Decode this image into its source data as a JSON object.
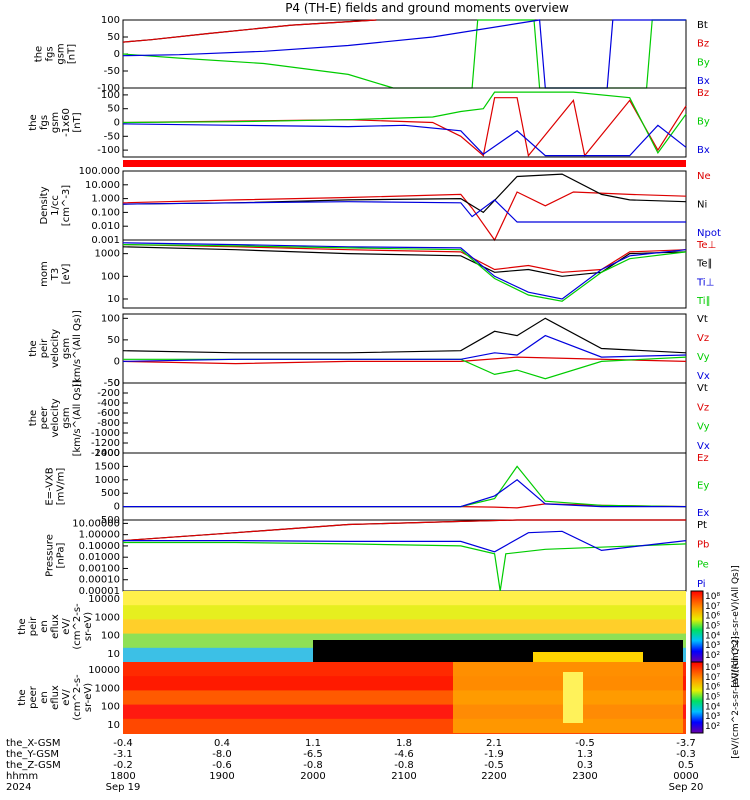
{
  "title": "P4 (TH-E) fields and ground moments overview",
  "chart_data": [
    {
      "panel": "fgs",
      "type": "line",
      "ylabel": [
        "the",
        "fgs",
        "gsm",
        "[nT]"
      ],
      "ylim": [
        -100,
        100
      ],
      "yticks": [
        100,
        50,
        0,
        -50,
        -100
      ],
      "ylog": false,
      "series": [
        {
          "name": "Bt",
          "color": "#000000",
          "x": [
            0,
            0.05,
            0.15,
            0.3,
            0.45
          ],
          "y": [
            35,
            42,
            60,
            85,
            110
          ]
        },
        {
          "name": "Bz",
          "color": "#dd0000",
          "x": [
            0,
            0.05,
            0.15,
            0.3,
            0.45
          ],
          "y": [
            35,
            42,
            60,
            85,
            110
          ]
        },
        {
          "name": "By",
          "color": "#00cc00",
          "x": [
            0,
            0.1,
            0.25,
            0.4,
            0.48,
            0.62,
            0.63,
            0.73,
            0.74,
            0.93,
            0.94,
            1.0
          ],
          "y": [
            0,
            -12,
            -28,
            -60,
            -110,
            -110,
            110,
            110,
            -110,
            -110,
            110,
            110
          ]
        },
        {
          "name": "Bx",
          "color": "#0000dd",
          "x": [
            0,
            0.1,
            0.25,
            0.4,
            0.55,
            0.74,
            0.75,
            0.86,
            0.87,
            1.0
          ],
          "y": [
            -5,
            -2,
            8,
            25,
            50,
            110,
            -110,
            -110,
            110,
            110
          ]
        }
      ]
    },
    {
      "panel": "fgs-dsl",
      "type": "line",
      "ylabel": [
        "the",
        "fgs",
        "gsm",
        "-1x60",
        "[nT]"
      ],
      "ylim": [
        -125,
        125
      ],
      "yticks": [
        100,
        50,
        0,
        -50,
        -100
      ],
      "ylog": false,
      "series": [
        {
          "name": "Bz",
          "color": "#dd0000",
          "x": [
            0,
            0.2,
            0.4,
            0.55,
            0.6,
            0.64,
            0.66,
            0.7,
            0.72,
            0.8,
            0.82,
            0.9,
            0.95,
            1.0
          ],
          "y": [
            0,
            5,
            10,
            0,
            -50,
            -120,
            90,
            90,
            -120,
            80,
            -120,
            80,
            -100,
            60
          ]
        },
        {
          "name": "By",
          "color": "#00cc00",
          "x": [
            0,
            0.2,
            0.4,
            0.55,
            0.6,
            0.64,
            0.66,
            0.8,
            0.9,
            0.95,
            1.0
          ],
          "y": [
            0,
            3,
            10,
            20,
            40,
            50,
            110,
            110,
            90,
            -110,
            30
          ]
        },
        {
          "name": "Bx",
          "color": "#0000dd",
          "x": [
            0,
            0.2,
            0.4,
            0.5,
            0.6,
            0.64,
            0.7,
            0.75,
            0.82,
            0.9,
            0.95,
            1.0
          ],
          "y": [
            -5,
            -10,
            -15,
            -10,
            -30,
            -115,
            -30,
            -120,
            -120,
            -120,
            -10,
            -90
          ]
        }
      ]
    },
    {
      "panel": "density",
      "type": "line",
      "ylabel": [
        "Density",
        "1/cc",
        "[cm^-3]"
      ],
      "ylim": [
        0.001,
        100
      ],
      "yticks": [
        "100.000",
        "10.000",
        "1.000",
        "0.100",
        "0.010",
        "0.001"
      ],
      "ylog": true,
      "series": [
        {
          "name": "Ne",
          "color": "#dd0000",
          "x": [
            0,
            0.2,
            0.4,
            0.6,
            0.62,
            0.66,
            0.7,
            0.75,
            0.8,
            0.9,
            1.0
          ],
          "y": [
            0.5,
            0.8,
            1.2,
            2,
            0.2,
            0.001,
            3,
            0.3,
            3,
            2,
            1.5
          ]
        },
        {
          "name": "Ni",
          "color": "#000000",
          "x": [
            0,
            0.2,
            0.4,
            0.6,
            0.64,
            0.7,
            0.78,
            0.85,
            0.9,
            1.0
          ],
          "y": [
            0.4,
            0.5,
            0.8,
            1,
            0.1,
            40,
            60,
            2,
            0.8,
            0.6
          ]
        },
        {
          "name": "Npot",
          "color": "#0000dd",
          "x": [
            0,
            0.2,
            0.4,
            0.6,
            0.62,
            0.66,
            0.7,
            1.0
          ],
          "y": [
            0.4,
            0.5,
            0.6,
            0.5,
            0.05,
            0.8,
            0.02,
            0.02
          ]
        }
      ]
    },
    {
      "panel": "temperature",
      "type": "line",
      "ylabel": [
        "mom",
        "T3",
        "[eV]"
      ],
      "ylim": [
        4,
        4000
      ],
      "yticks": [
        "1000",
        "100",
        "10"
      ],
      "ylog": true,
      "series": [
        {
          "name": "Te⊥",
          "color": "#dd0000",
          "x": [
            0,
            0.2,
            0.4,
            0.6,
            0.66,
            0.72,
            0.78,
            0.85,
            0.9,
            1.0
          ],
          "y": [
            2500,
            2000,
            1500,
            1200,
            200,
            300,
            150,
            200,
            1200,
            1500
          ]
        },
        {
          "name": "Te∥",
          "color": "#000000",
          "x": [
            0,
            0.2,
            0.4,
            0.6,
            0.66,
            0.72,
            0.78,
            0.85,
            0.9,
            1.0
          ],
          "y": [
            2000,
            1500,
            1000,
            800,
            150,
            200,
            100,
            150,
            1000,
            1200
          ]
        },
        {
          "name": "Ti⊥",
          "color": "#0000dd",
          "x": [
            0,
            0.2,
            0.4,
            0.6,
            0.66,
            0.72,
            0.78,
            0.85,
            0.9,
            1.0
          ],
          "y": [
            3000,
            2500,
            2000,
            1800,
            100,
            20,
            10,
            200,
            800,
            1500
          ]
        },
        {
          "name": "Ti∥",
          "color": "#00cc00",
          "x": [
            0,
            0.2,
            0.4,
            0.6,
            0.66,
            0.72,
            0.78,
            0.85,
            0.9,
            1.0
          ],
          "y": [
            2500,
            2200,
            1800,
            1500,
            80,
            15,
            8,
            150,
            600,
            1200
          ]
        }
      ]
    },
    {
      "panel": "peir-velocity",
      "type": "line",
      "ylabel": [
        "the",
        "peir",
        "velocity",
        "gsm",
        "[km/s^(All Qs)]"
      ],
      "ylim": [
        -50,
        110
      ],
      "yticks": [
        100,
        50,
        0,
        -50
      ],
      "ylog": false,
      "series": [
        {
          "name": "Vt",
          "color": "#000000",
          "x": [
            0,
            0.2,
            0.4,
            0.6,
            0.66,
            0.7,
            0.75,
            0.85,
            1.0
          ],
          "y": [
            25,
            20,
            20,
            25,
            70,
            60,
            100,
            30,
            20
          ]
        },
        {
          "name": "Vz",
          "color": "#dd0000",
          "x": [
            0,
            0.2,
            0.4,
            0.6,
            0.7,
            1.0
          ],
          "y": [
            0,
            -5,
            0,
            0,
            10,
            0
          ]
        },
        {
          "name": "Vy",
          "color": "#00cc00",
          "x": [
            0,
            0.2,
            0.4,
            0.6,
            0.66,
            0.7,
            0.75,
            0.85,
            1.0
          ],
          "y": [
            5,
            5,
            5,
            5,
            -30,
            -20,
            -40,
            0,
            10
          ]
        },
        {
          "name": "Vx",
          "color": "#0000dd",
          "x": [
            0,
            0.2,
            0.4,
            0.6,
            0.66,
            0.7,
            0.75,
            0.85,
            1.0
          ],
          "y": [
            0,
            5,
            5,
            5,
            20,
            15,
            60,
            10,
            15
          ]
        }
      ]
    },
    {
      "panel": "peer-velocity",
      "type": "line",
      "ylabel": [
        "the",
        "peer",
        "velocity",
        "gsm",
        "[km/s^(All Qs)]"
      ],
      "ylim": [
        -1400,
        0
      ],
      "yticks": [
        0,
        -200,
        -400,
        -600,
        -800,
        -1000,
        -1200,
        -1400
      ],
      "ylog": false,
      "series": [
        {
          "name": "Vt",
          "color": "#000000",
          "x": [],
          "y": []
        },
        {
          "name": "Vz",
          "color": "#dd0000",
          "x": [],
          "y": []
        },
        {
          "name": "Vy",
          "color": "#00cc00",
          "x": [],
          "y": []
        },
        {
          "name": "Vx",
          "color": "#0000dd",
          "x": [],
          "y": []
        }
      ]
    },
    {
      "panel": "efield",
      "type": "line",
      "ylabel": [
        "E=-VXB",
        "[mV/m]"
      ],
      "ylim": [
        -500,
        2000
      ],
      "yticks": [
        2000,
        1500,
        1000,
        500,
        0,
        -500
      ],
      "ylog": false,
      "series": [
        {
          "name": "Ez",
          "color": "#dd0000",
          "x": [
            0,
            0.2,
            0.4,
            0.6,
            0.66,
            0.7,
            0.75,
            0.85,
            1.0
          ],
          "y": [
            0,
            0,
            0,
            0,
            -20,
            -50,
            100,
            50,
            0
          ]
        },
        {
          "name": "Ey",
          "color": "#00cc00",
          "x": [
            0,
            0.2,
            0.4,
            0.6,
            0.66,
            0.7,
            0.75,
            0.85,
            1.0
          ],
          "y": [
            0,
            0,
            0,
            0,
            300,
            1500,
            200,
            50,
            0
          ]
        },
        {
          "name": "Ex",
          "color": "#0000dd",
          "x": [
            0,
            0.2,
            0.4,
            0.6,
            0.66,
            0.7,
            0.75,
            0.85,
            1.0
          ],
          "y": [
            0,
            0,
            0,
            0,
            400,
            1000,
            100,
            0,
            0
          ]
        }
      ]
    },
    {
      "panel": "pressure",
      "type": "line",
      "ylabel": [
        "Pressure",
        "[nPa]"
      ],
      "ylim": [
        1e-05,
        20
      ],
      "yticks": [
        "10.00000",
        "1.00000",
        "0.10000",
        "0.01000",
        "0.00100",
        "0.00010",
        "0.00001"
      ],
      "ylog": true,
      "series": [
        {
          "name": "Pt",
          "color": "#000000",
          "x": [
            0,
            0.2,
            0.4,
            0.6,
            0.7,
            1.0
          ],
          "y": [
            0.3,
            1.5,
            8,
            15,
            20,
            20
          ]
        },
        {
          "name": "Pb",
          "color": "#dd0000",
          "x": [
            0,
            0.2,
            0.4,
            0.6,
            0.7,
            1.0
          ],
          "y": [
            0.3,
            1.5,
            8,
            15,
            20,
            20
          ]
        },
        {
          "name": "Pe",
          "color": "#00cc00",
          "x": [
            0,
            0.2,
            0.4,
            0.6,
            0.66,
            0.67,
            0.68,
            0.75,
            1.0
          ],
          "y": [
            0.2,
            0.2,
            0.15,
            0.1,
            0.02,
            1e-05,
            0.02,
            0.05,
            0.15
          ]
        },
        {
          "name": "Pi",
          "color": "#0000dd",
          "x": [
            0,
            0.2,
            0.4,
            0.6,
            0.66,
            0.72,
            0.78,
            0.85,
            1.0
          ],
          "y": [
            0.3,
            0.3,
            0.25,
            0.25,
            0.03,
            1.5,
            2,
            0.04,
            0.3
          ]
        }
      ]
    },
    {
      "panel": "peir-spectrogram",
      "type": "heatmap",
      "ylabel": [
        "the",
        "peir",
        "en",
        "eflux",
        "eV/",
        "(cm^2-s-",
        "sr-eV)"
      ],
      "ylog": true,
      "yticks": [
        "10000",
        "1000",
        "100",
        "10"
      ],
      "colorbar_label": "[eV/(cm^2-s-sr-eV)(All Qs)]",
      "colorbar_ticks": [
        "10⁸",
        "10⁷",
        "10⁶",
        "10⁵",
        "10⁴",
        "10³",
        "10²"
      ]
    },
    {
      "panel": "peer-spectrogram",
      "type": "heatmap",
      "ylabel": [
        "the",
        "peer",
        "en",
        "eflux",
        "eV/",
        "(cm^2-s-",
        "sr-eV)"
      ],
      "ylog": true,
      "yticks": [
        "10000",
        "1000",
        "100",
        "10"
      ],
      "colorbar_label": "[eV/(cm^2-s-sr-eV)(All Qs)]",
      "colorbar_ticks": [
        "10⁸",
        "10⁷",
        "10⁶",
        "10⁵",
        "10⁴",
        "10³",
        "10²"
      ]
    }
  ],
  "time_axis": {
    "rows": [
      {
        "label": "the_X-GSM",
        "values": [
          "-0.4",
          "0.4",
          "1.1",
          "1.8",
          "2.1",
          "-0.5",
          "-3.7"
        ]
      },
      {
        "label": "the_Y-GSM",
        "values": [
          "-3.1",
          "-8.0",
          "-6.5",
          "-4.6",
          "-1.9",
          "1.3",
          "-0.3"
        ]
      },
      {
        "label": "the_Z-GSM",
        "values": [
          "-0.2",
          "-0.6",
          "-0.8",
          "-0.8",
          "-0.5",
          "0.3",
          "0.5"
        ]
      },
      {
        "label": "hhmm",
        "values": [
          "1800",
          "1900",
          "2000",
          "2100",
          "2200",
          "2300",
          "0000"
        ]
      },
      {
        "label": "2024",
        "values": [
          "Sep 19",
          "",
          "",
          "",
          "",
          "",
          "Sep 20"
        ]
      }
    ]
  }
}
